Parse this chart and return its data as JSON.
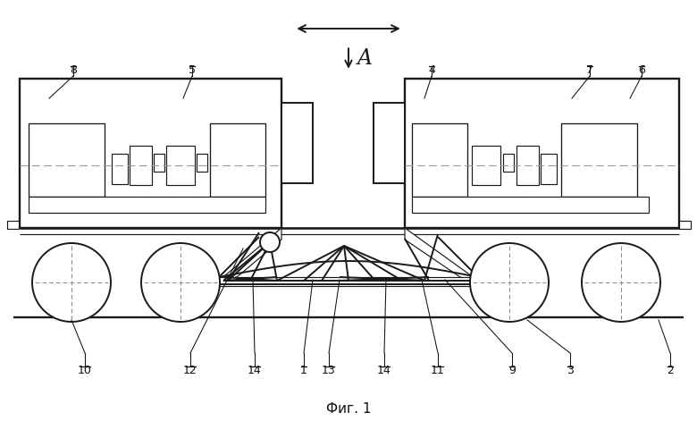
{
  "figsize": [
    7.8,
    4.71
  ],
  "dpi": 100,
  "bg": "#ffffff",
  "lc": "#1a1a1a",
  "title": "Фиг. 1",
  "arrow_label": "A"
}
